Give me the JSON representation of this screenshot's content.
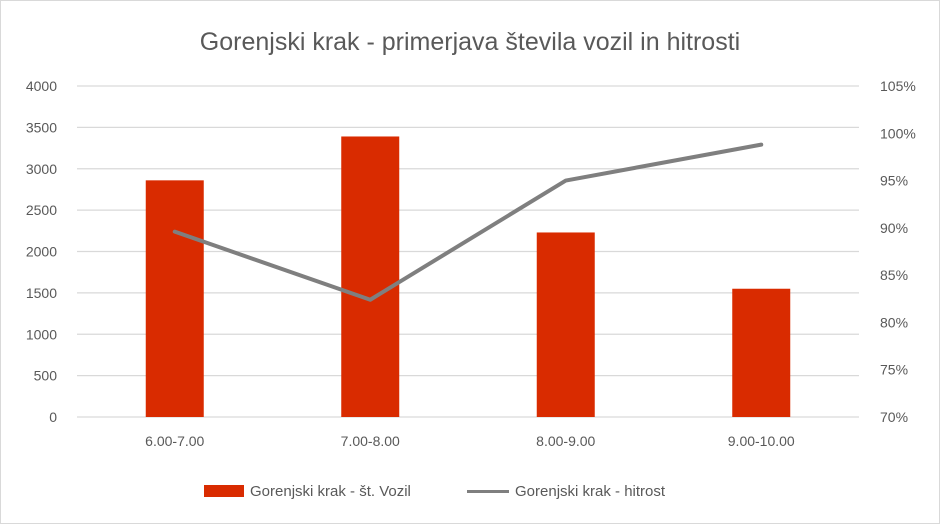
{
  "chart_data": {
    "type": "bar+line",
    "title": "Gorenjski krak - primerjava števila vozil in hitrosti",
    "categories": [
      "6.00-7.00",
      "7.00-8.00",
      "8.00-9.00",
      "9.00-10.00"
    ],
    "series": [
      {
        "name": "Gorenjski krak - št. Vozil",
        "type": "bar",
        "axis": "left",
        "color": "#d92b00",
        "values": [
          2860,
          3390,
          2230,
          1550
        ]
      },
      {
        "name": "Gorenjski krak - hitrost",
        "type": "line",
        "axis": "right",
        "color": "#7f7f7f",
        "values": [
          0.896,
          0.824,
          0.95,
          0.988
        ]
      }
    ],
    "left_axis": {
      "label": "",
      "ylim": [
        0,
        4000
      ],
      "ticks": [
        0,
        500,
        1000,
        1500,
        2000,
        2500,
        3000,
        3500,
        4000
      ],
      "tick_labels": [
        "0",
        "500",
        "1000",
        "1500",
        "2000",
        "2500",
        "3000",
        "3500",
        "4000"
      ]
    },
    "right_axis": {
      "label": "",
      "ylim": [
        0.7,
        1.05
      ],
      "ticks": [
        0.7,
        0.75,
        0.8,
        0.85,
        0.9,
        0.95,
        1.0,
        1.05
      ],
      "tick_labels": [
        "70%",
        "75%",
        "80%",
        "85%",
        "90%",
        "95%",
        "100%",
        "105%"
      ]
    },
    "xlabel": "",
    "grid": true,
    "legend_position": "bottom"
  },
  "colors": {
    "bar": "#d92b00",
    "line": "#7f7f7f",
    "grid": "#d9d9d9",
    "text": "#595959",
    "border": "#d9d9d9"
  },
  "legend": [
    {
      "label": "Gorenjski krak - št. Vozil",
      "kind": "bar"
    },
    {
      "label": "Gorenjski krak - hitrost",
      "kind": "line"
    }
  ]
}
